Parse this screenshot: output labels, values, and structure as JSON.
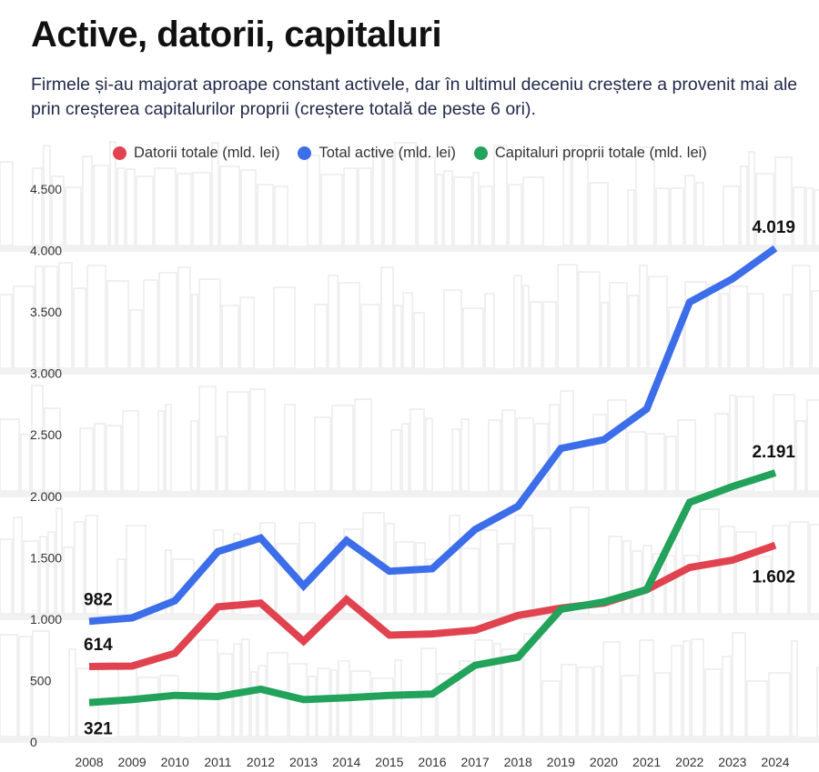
{
  "title": "Active, datorii, capitaluri",
  "subtitle": "Firmele și-au majorat aproape constant activele, dar în ultimul deceniu creștere a provenit mai ale prin creșterea capitalurilor proprii (creștere totală de peste 6 ori).",
  "chart_data": {
    "type": "line",
    "title": "Active, datorii, capitaluri",
    "xlabel": "",
    "ylabel": "",
    "ylim": [
      0,
      4500
    ],
    "yticks": [
      0,
      500,
      1000,
      1500,
      2000,
      2500,
      3000,
      3500,
      4000,
      4500
    ],
    "ytick_labels": [
      "0",
      "500",
      "1.000",
      "1.500",
      "2.000",
      "2.500",
      "3.000",
      "3.500",
      "4.000",
      "4.500"
    ],
    "x": [
      "2008",
      "2009",
      "2010",
      "2011",
      "2012",
      "2013",
      "2014",
      "2015",
      "2016",
      "2017",
      "2018",
      "2019",
      "2020",
      "2021",
      "2022",
      "2023",
      "2024"
    ],
    "legend_position": "top",
    "series": [
      {
        "name": "Datorii totale (mld. lei)",
        "color": "#e0434f",
        "values": [
          614,
          618,
          722,
          1100,
          1130,
          820,
          1160,
          870,
          880,
          910,
          1030,
          1090,
          1130,
          1240,
          1420,
          1480,
          1602
        ]
      },
      {
        "name": "Total active (mld. lei)",
        "color": "#3d6eea",
        "values": [
          982,
          1010,
          1150,
          1550,
          1660,
          1270,
          1640,
          1390,
          1410,
          1730,
          1920,
          2390,
          2460,
          2710,
          3580,
          3770,
          4019
        ]
      },
      {
        "name": "Capitaluri proprii totale (mld. lei)",
        "color": "#22a25a",
        "values": [
          321,
          345,
          380,
          370,
          430,
          345,
          360,
          380,
          390,
          625,
          690,
          1080,
          1140,
          1240,
          1950,
          2080,
          2191
        ]
      }
    ],
    "annotations": [
      {
        "series": 1,
        "index": 0,
        "label": "982",
        "anchor": "above-start"
      },
      {
        "series": 0,
        "index": 0,
        "label": "614",
        "anchor": "above-start"
      },
      {
        "series": 2,
        "index": 0,
        "label": "321",
        "anchor": "below-start"
      },
      {
        "series": 1,
        "index": 16,
        "label": "4.019",
        "anchor": "above-end"
      },
      {
        "series": 2,
        "index": 16,
        "label": "2.191",
        "anchor": "above-end"
      },
      {
        "series": 0,
        "index": 16,
        "label": "1.602",
        "anchor": "below-end"
      }
    ]
  }
}
